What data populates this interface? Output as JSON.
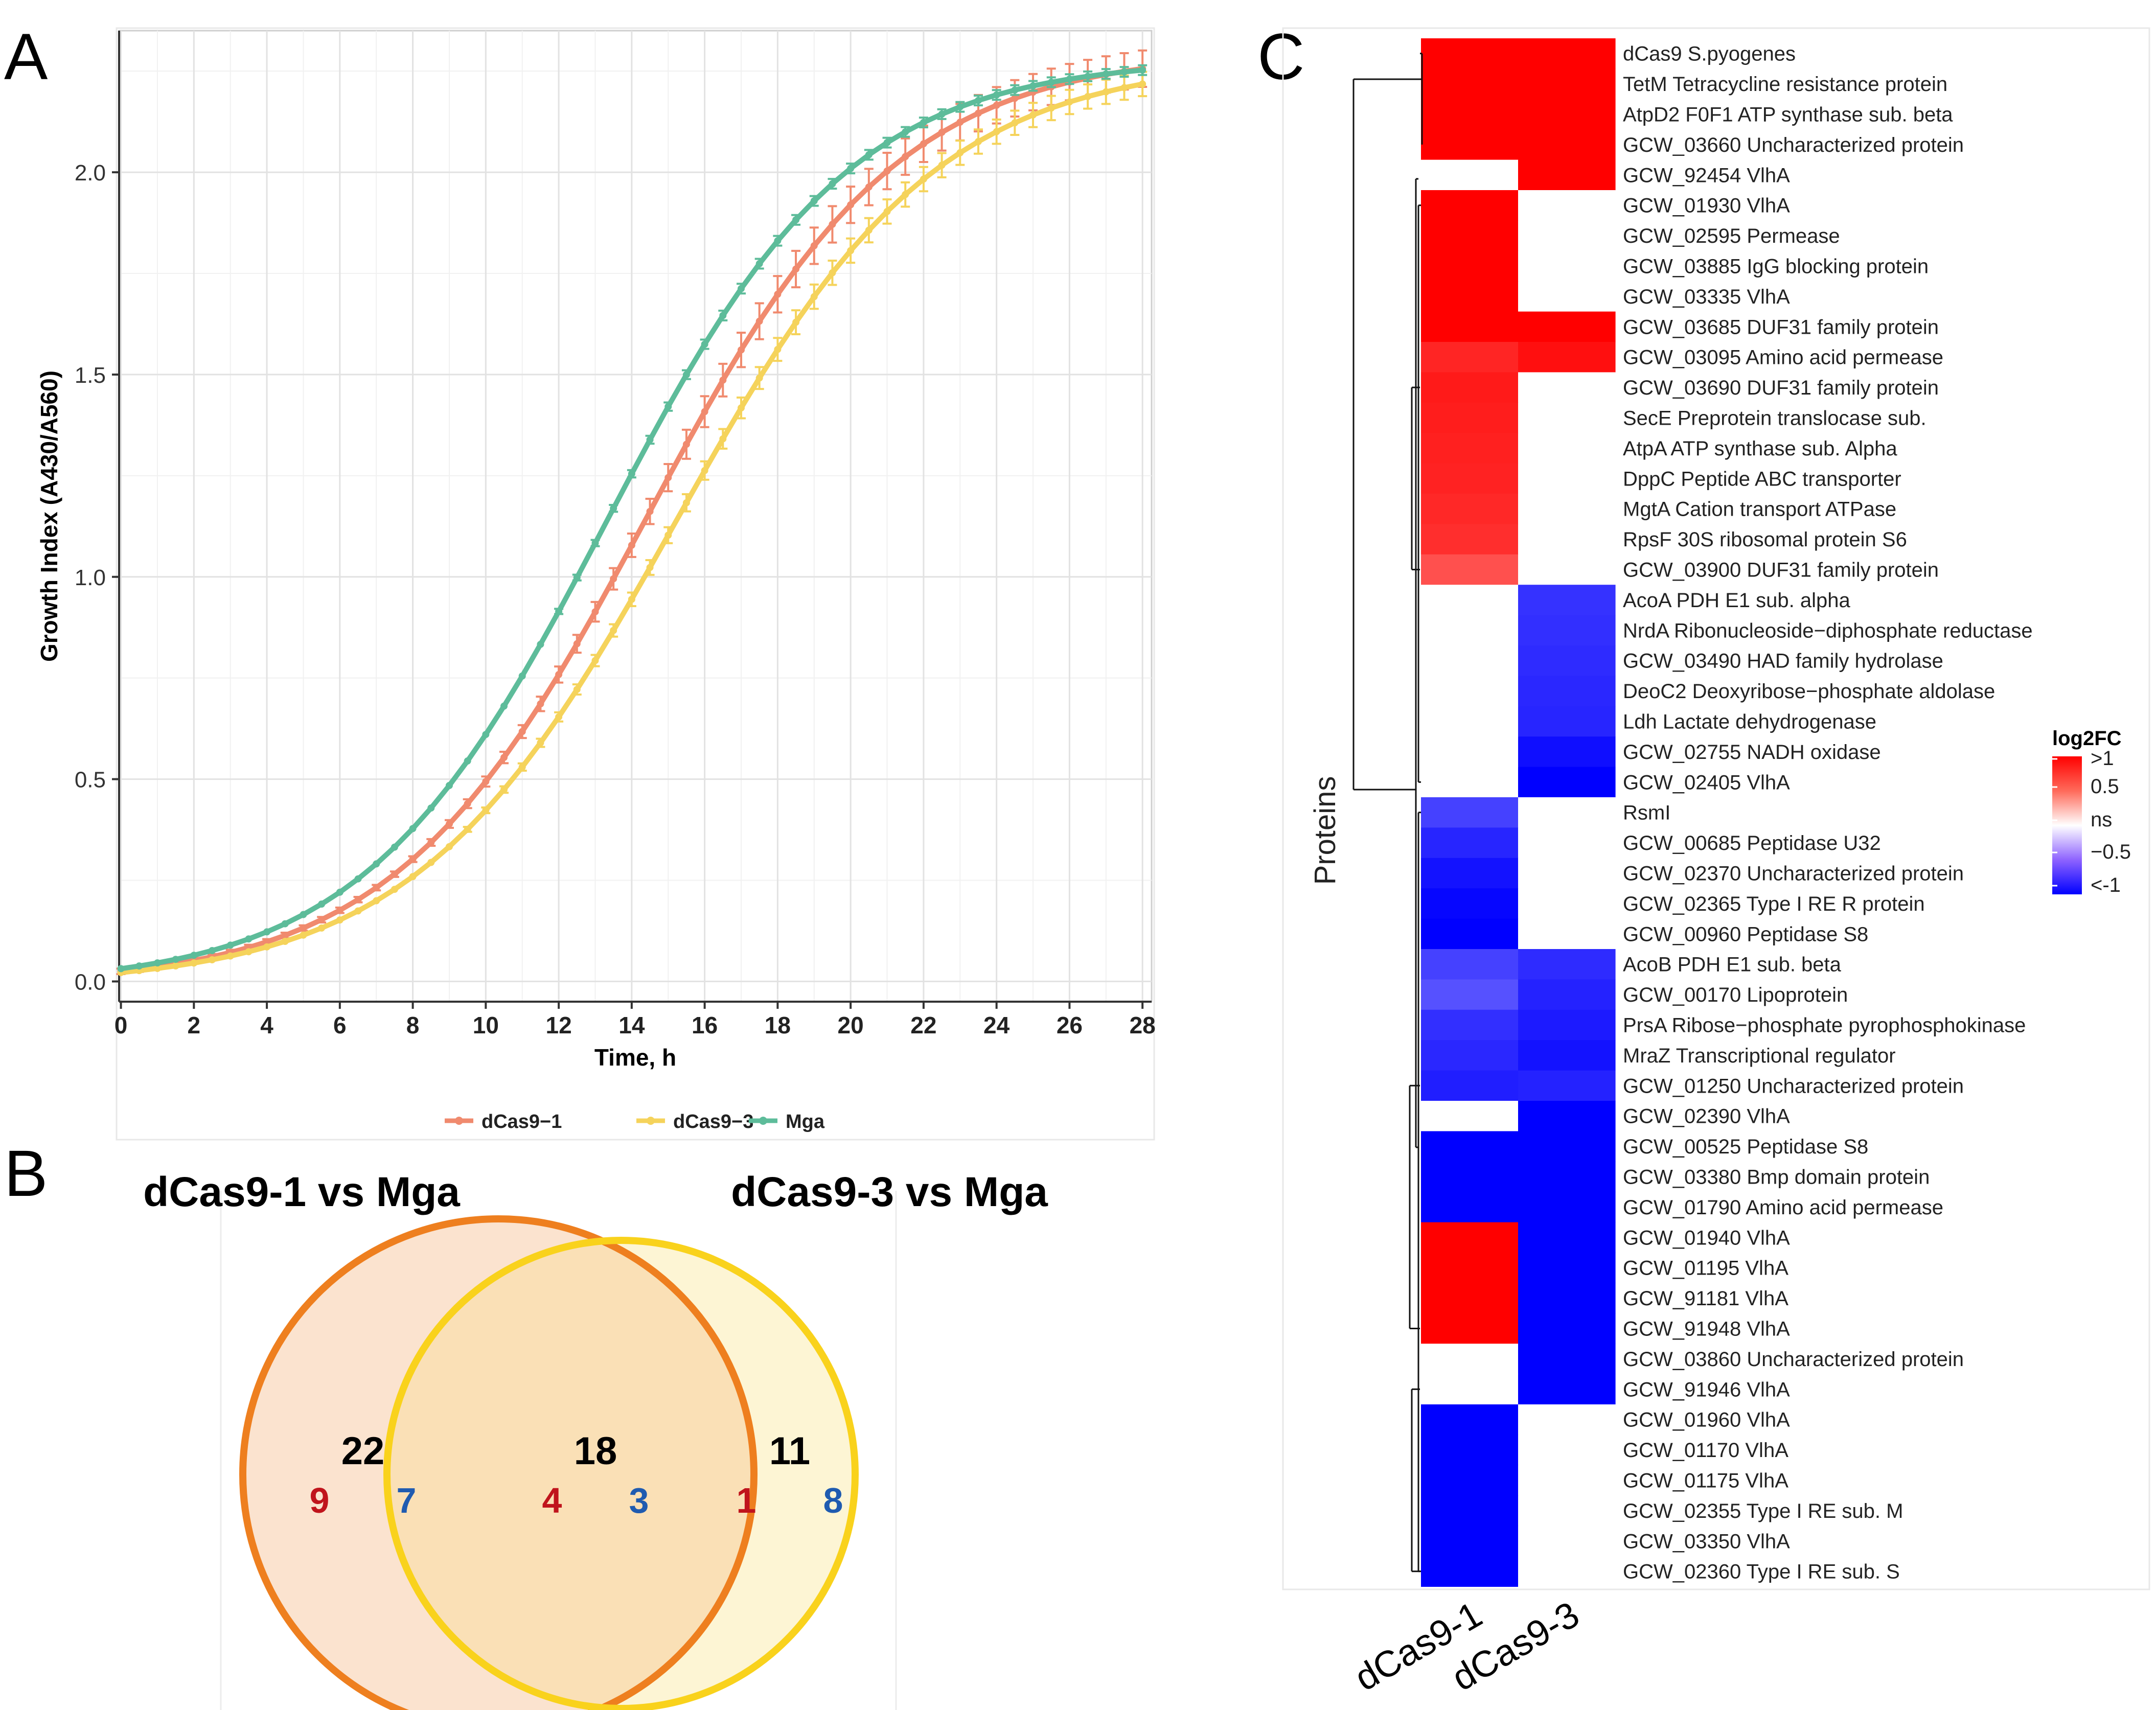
{
  "panel_labels": {
    "a": "A",
    "b": "B",
    "c": "C"
  },
  "chart_data": [
    {
      "panel": "A",
      "type": "line",
      "title": "",
      "xlabel": "Time, h",
      "ylabel": "Growth Index (A430/A560)",
      "xlim": [
        0,
        28
      ],
      "ylim": [
        -0.05,
        2.35
      ],
      "xticks": [
        0,
        2,
        4,
        6,
        8,
        10,
        12,
        14,
        16,
        18,
        20,
        22,
        24,
        26,
        28
      ],
      "yticks": [
        0.0,
        0.5,
        1.0,
        1.5,
        2.0
      ],
      "ytick_labels": [
        "0.0",
        "0.5",
        "1.0",
        "1.5",
        "2.0"
      ],
      "grid": true,
      "legend_position": "bottom",
      "series": [
        {
          "name": "dCas9−1",
          "color": "#F08A6E",
          "model": {
            "bottom": -0.01,
            "top": 2.3,
            "midpoint": 14.4,
            "rate": 0.29
          },
          "error_bar": 0.045
        },
        {
          "name": "dCas9−3",
          "color": "#F5D35B",
          "model": {
            "bottom": -0.01,
            "top": 2.28,
            "midpoint": 15.2,
            "rate": 0.28
          },
          "error_bar": 0.03
        },
        {
          "name": "Mga",
          "color": "#5DBC9A",
          "model": {
            "bottom": -0.01,
            "top": 2.28,
            "midpoint": 13.3,
            "rate": 0.3
          },
          "error_bar": 0.012
        }
      ]
    },
    {
      "panel": "B",
      "type": "venn",
      "sets": [
        {
          "name": "dCas9-1 vs Mga",
          "color": "#EE7F1F",
          "fill": "#FBE3CF",
          "total": "22",
          "up": "9",
          "down": "7"
        },
        {
          "name": "dCas9-3 vs Mga",
          "color": "#F9D21C",
          "fill": "#FDF5D4",
          "total": "11",
          "up": "1",
          "down": "8"
        }
      ],
      "intersection": {
        "total": "18",
        "up": "4",
        "down": "3",
        "fill": "#FAE0B6"
      },
      "up_color": "#C0141C",
      "down_color": "#1F5BB0"
    },
    {
      "panel": "C",
      "type": "heatmap",
      "ylabel": "Proteins",
      "columns": [
        "dCas9-1",
        "dCas9-3"
      ],
      "legend_title": "log2FC",
      "legend_labels": [
        ">1",
        "0.5",
        "ns",
        "−0.5",
        "<-1"
      ],
      "legend_colors": [
        "#FF0000",
        "#FF6A5A",
        "#FFFFFF",
        "#8E63FF",
        "#0000FF"
      ],
      "rows": [
        {
          "label": "dCas9 S.pyogenes",
          "values": [
            1.3,
            1.3
          ]
        },
        {
          "label": "TetM Tetracycline resistance protein",
          "values": [
            1.3,
            1.3
          ]
        },
        {
          "label": "AtpD2 F0F1 ATP synthase sub. beta",
          "values": [
            1.3,
            1.3
          ]
        },
        {
          "label": "GCW_03660 Uncharacterized protein",
          "values": [
            1.3,
            1.3
          ]
        },
        {
          "label": "GCW_92454 VlhA",
          "values": [
            null,
            1.3
          ]
        },
        {
          "label": "GCW_01930 VlhA",
          "values": [
            1.3,
            null
          ]
        },
        {
          "label": "GCW_02595 Permease",
          "values": [
            1.3,
            null
          ]
        },
        {
          "label": "GCW_03885 IgG blocking protein",
          "values": [
            1.3,
            null
          ]
        },
        {
          "label": "GCW_03335 VlhA",
          "values": [
            1.3,
            null
          ]
        },
        {
          "label": "GCW_03685 DUF31 family protein",
          "values": [
            1.3,
            1.1
          ]
        },
        {
          "label": "GCW_03095 Amino acid permease",
          "values": [
            0.72,
            0.88
          ]
        },
        {
          "label": "GCW_03690 DUF31 family protein",
          "values": [
            0.8,
            null
          ]
        },
        {
          "label": "SecE Preprotein translocase sub.",
          "values": [
            0.78,
            null
          ]
        },
        {
          "label": "AtpA ATP synthase sub. Alpha",
          "values": [
            0.76,
            null
          ]
        },
        {
          "label": "DppC Peptide ABC transporter",
          "values": [
            0.74,
            null
          ]
        },
        {
          "label": "MgtA Cation transport ATPase",
          "values": [
            0.7,
            null
          ]
        },
        {
          "label": "RpsF 30S ribosomal protein S6",
          "values": [
            0.66,
            null
          ]
        },
        {
          "label": "GCW_03900 DUF31 family protein",
          "values": [
            0.45,
            null
          ]
        },
        {
          "label": "AcoA PDH E1 sub. alpha",
          "values": [
            null,
            -0.6
          ]
        },
        {
          "label": "NrdA Ribonucleoside−diphosphate reductase",
          "values": [
            null,
            -0.62
          ]
        },
        {
          "label": "GCW_03490 HAD family hydrolase",
          "values": [
            null,
            -0.65
          ]
        },
        {
          "label": "DeoC2 Deoxyribose−phosphate aldolase",
          "values": [
            null,
            -0.68
          ]
        },
        {
          "label": "Ldh Lactate dehydrogenase",
          "values": [
            null,
            -0.7
          ]
        },
        {
          "label": "GCW_02755 NADH oxidase",
          "values": [
            null,
            -0.88
          ]
        },
        {
          "label": "GCW_02405 VlhA",
          "values": [
            null,
            -1.3
          ]
        },
        {
          "label": "RsmI",
          "values": [
            -0.5,
            null
          ]
        },
        {
          "label": "GCW_00685 Peptidase U32",
          "values": [
            -0.7,
            null
          ]
        },
        {
          "label": "GCW_02370 Uncharacterized protein",
          "values": [
            -0.85,
            null
          ]
        },
        {
          "label": "GCW_02365 Type I RE R protein",
          "values": [
            -0.95,
            null
          ]
        },
        {
          "label": "GCW_00960 Peptidase S8",
          "values": [
            -1.2,
            null
          ]
        },
        {
          "label": "AcoB PDH E1 sub. beta",
          "values": [
            -0.5,
            -0.65
          ]
        },
        {
          "label": "GCW_00170 Lipoprotein",
          "values": [
            -0.4,
            -0.72
          ]
        },
        {
          "label": "PrsA Ribose−phosphate pyrophosphokinase",
          "values": [
            -0.62,
            -0.78
          ]
        },
        {
          "label": "MraZ Transcriptional regulator",
          "values": [
            -0.68,
            -0.85
          ]
        },
        {
          "label": "GCW_01250 Uncharacterized protein",
          "values": [
            -0.75,
            -0.72
          ]
        },
        {
          "label": "GCW_02390 VlhA",
          "values": [
            null,
            -1.3
          ]
        },
        {
          "label": "GCW_00525 Peptidase S8",
          "values": [
            -1.3,
            -1.3
          ]
        },
        {
          "label": "GCW_03380 Bmp domain protein",
          "values": [
            -1.3,
            -1.3
          ]
        },
        {
          "label": "GCW_01790 Amino acid permease",
          "values": [
            -1.3,
            -1.3
          ]
        },
        {
          "label": "GCW_01940 VlhA",
          "values": [
            1.3,
            -1.3
          ]
        },
        {
          "label": "GCW_01195 VlhA",
          "values": [
            1.3,
            -1.3
          ]
        },
        {
          "label": "GCW_91181 VlhA",
          "values": [
            1.3,
            -1.3
          ]
        },
        {
          "label": "GCW_91948 VlhA",
          "values": [
            1.3,
            -1.3
          ]
        },
        {
          "label": "GCW_03860 Uncharacterized protein",
          "values": [
            null,
            -1.3
          ]
        },
        {
          "label": "GCW_91946 VlhA",
          "values": [
            null,
            -1.3
          ]
        },
        {
          "label": "GCW_01960 VlhA",
          "values": [
            -1.3,
            null
          ]
        },
        {
          "label": "GCW_01170 VlhA",
          "values": [
            -1.3,
            null
          ]
        },
        {
          "label": "GCW_01175 VlhA",
          "values": [
            -1.3,
            null
          ]
        },
        {
          "label": "GCW_02355 Type I RE sub. M",
          "values": [
            -1.3,
            null
          ]
        },
        {
          "label": "GCW_03350 VlhA",
          "values": [
            -1.3,
            null
          ]
        },
        {
          "label": "GCW_02360 Type I RE sub. S",
          "values": [
            -1.3,
            null
          ]
        }
      ]
    }
  ]
}
